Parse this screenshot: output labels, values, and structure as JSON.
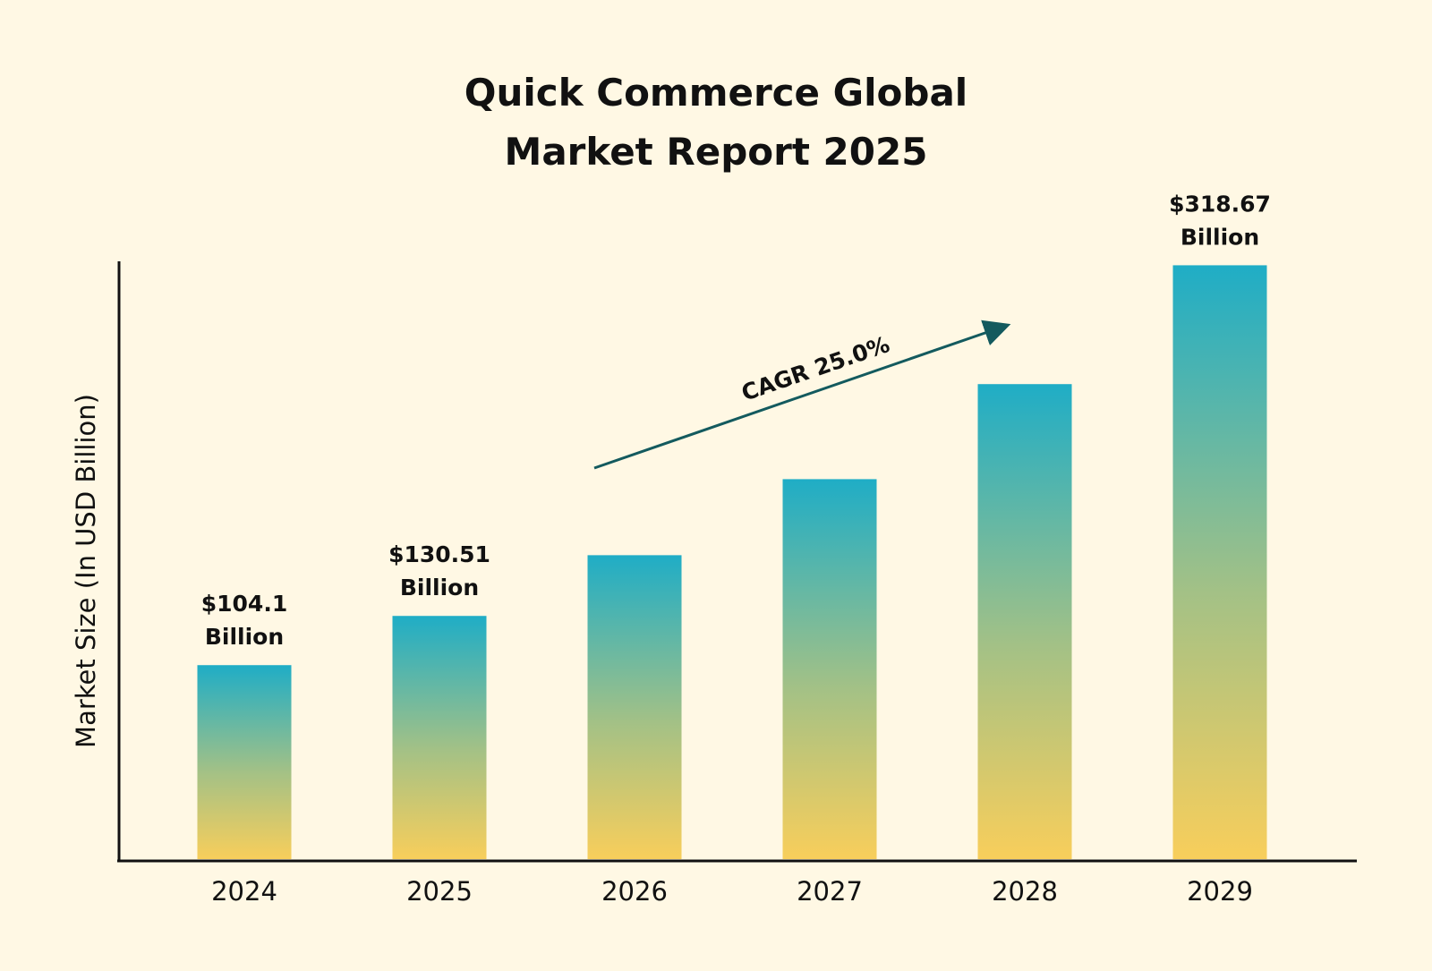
{
  "chart_data": {
    "type": "bar",
    "title_lines": [
      "Quick Commerce Global",
      "Market Report 2025"
    ],
    "xlabel": "",
    "ylabel": "Market Size (In USD Billion)",
    "categories": [
      "2024",
      "2025",
      "2026",
      "2027",
      "2028",
      "2029"
    ],
    "values": [
      104.1,
      130.51,
      163.1,
      203.9,
      254.9,
      318.67
    ],
    "data_labels": [
      [
        "$104.1",
        "Billion"
      ],
      [
        "$130.51",
        "Billion"
      ],
      null,
      null,
      null,
      [
        "$318.67",
        "Billion"
      ]
    ],
    "annotation": "CAGR 25.0%",
    "ylim": [
      0,
      340
    ],
    "grid": false,
    "legend": "none",
    "colors": {
      "background": "#fff8e4",
      "bar_top": "#1fadc6",
      "bar_bottom": "#f8ce5b",
      "arrow": "#135a5e",
      "axis": "#111111"
    }
  }
}
